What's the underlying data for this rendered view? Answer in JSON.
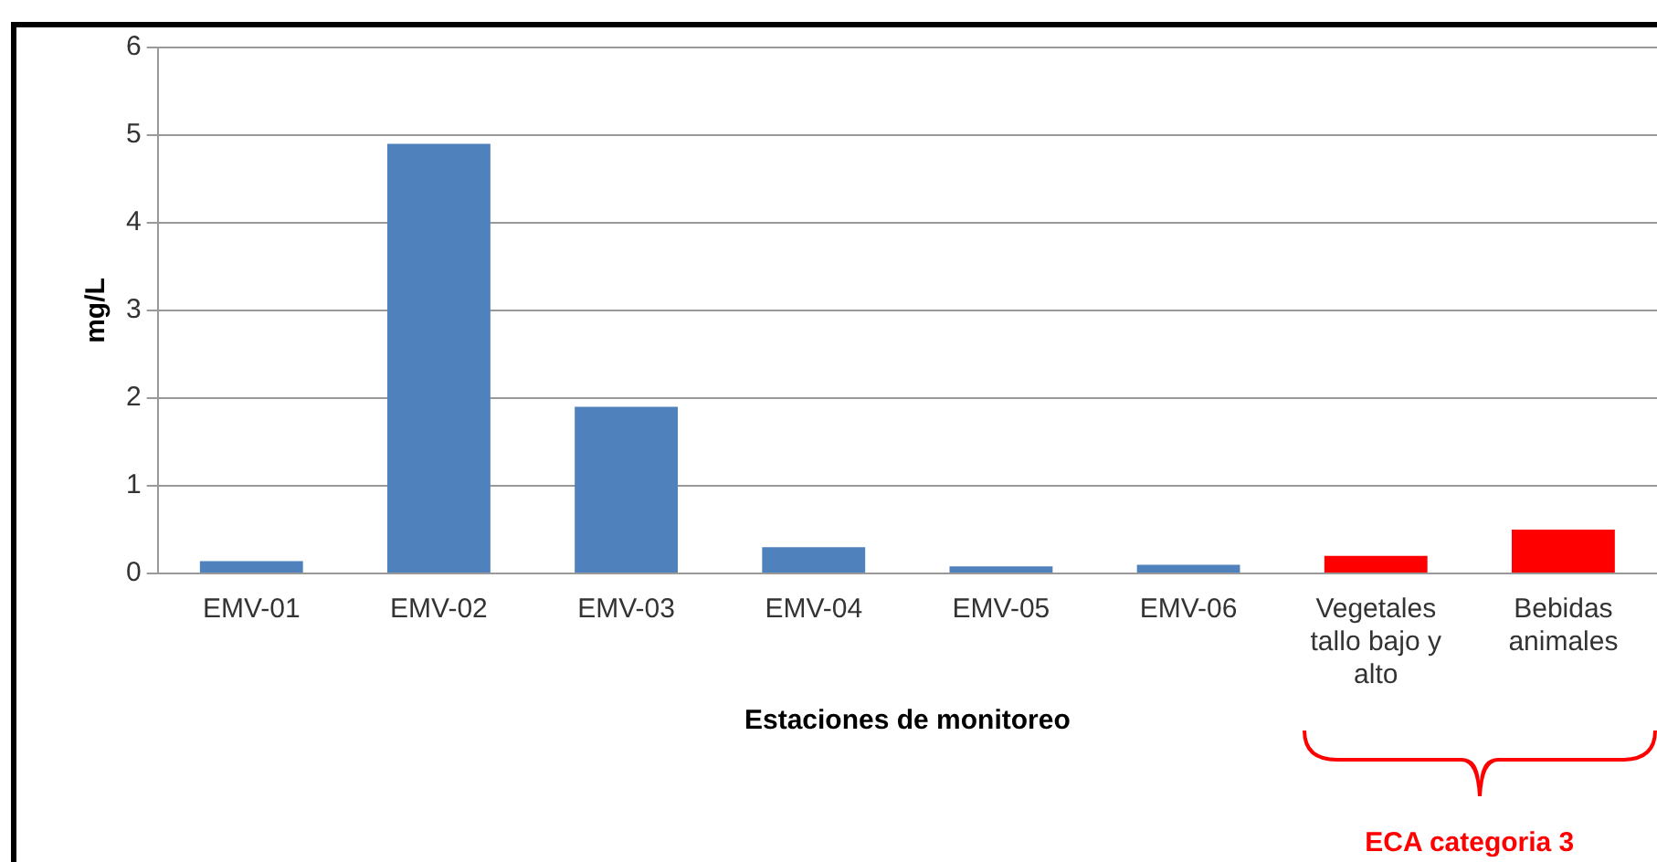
{
  "chart_data": {
    "type": "bar",
    "xlabel": "Estaciones de monitoreo",
    "ylabel": "mg/L",
    "categories": [
      "EMV-01",
      "EMV-02",
      "EMV-03",
      "EMV-04",
      "EMV-05",
      "EMV-06",
      "Vegetales tallo bajo y alto",
      "Bebidas animales"
    ],
    "values": [
      0.14,
      4.9,
      1.9,
      0.3,
      0.08,
      0.1,
      0.2,
      0.5
    ],
    "colors": [
      "#4f81bd",
      "#4f81bd",
      "#4f81bd",
      "#4f81bd",
      "#4f81bd",
      "#4f81bd",
      "#ff0000",
      "#ff0000"
    ],
    "ylim": [
      0,
      6
    ],
    "yticks": [
      0,
      1,
      2,
      3,
      4,
      5,
      6
    ],
    "grid": "y",
    "legend": false,
    "annotations": [
      "ECA categoria 3"
    ]
  }
}
